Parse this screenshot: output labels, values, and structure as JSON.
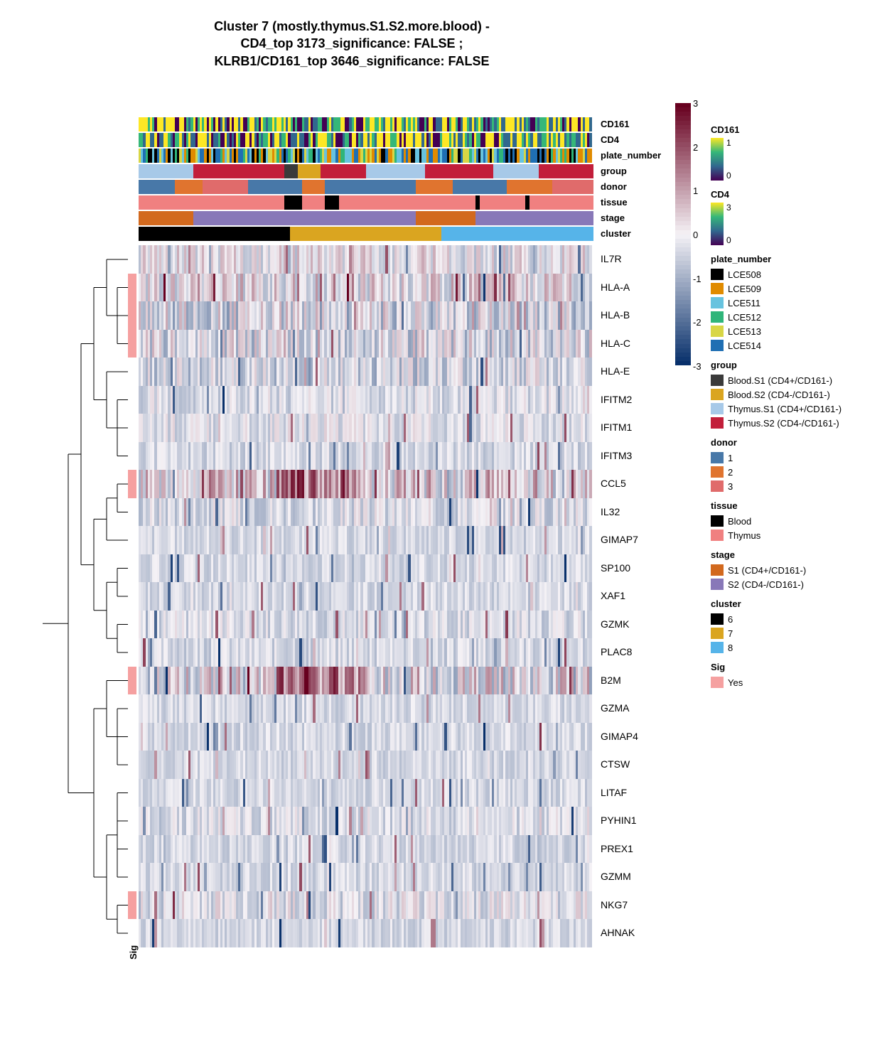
{
  "title_line1": "Cluster 7 (mostly.thymus.S1.S2.more.blood) -",
  "title_line2": "CD4_top 3173_significance: FALSE ;",
  "title_line3": "KLRB1/CD161_top 3646_significance: FALSE",
  "heat_ncols": 200,
  "heat_scale": {
    "min": -3,
    "max": 3,
    "mid": 0,
    "low_color": "#08306b",
    "mid_color": "#f5f2f6",
    "high_color": "#67001f"
  },
  "colorbar_ticks": [
    "3",
    "2",
    "1",
    "0",
    "-1",
    "-2",
    "-3"
  ],
  "anno_tracks": [
    {
      "name": "CD161",
      "label": "CD161",
      "type": "gradient",
      "palette": [
        "#440154",
        "#31688e",
        "#35b779",
        "#fde725"
      ]
    },
    {
      "name": "CD4",
      "label": "CD4",
      "type": "gradient",
      "palette": [
        "#440154",
        "#31688e",
        "#35b779",
        "#fde725"
      ]
    },
    {
      "name": "plate_number",
      "label": "plate_number",
      "type": "categorical",
      "colors": [
        "#000000",
        "#e08b00",
        "#67c3df",
        "#2fb57a",
        "#d8d645",
        "#1f6fb3"
      ]
    },
    {
      "name": "group",
      "label": "group",
      "type": "blocks",
      "segments": [
        {
          "c": "#a7c9e8",
          "w": 0.12
        },
        {
          "c": "#c21e3a",
          "w": 0.2
        },
        {
          "c": "#3a3a3a",
          "w": 0.03
        },
        {
          "c": "#daa520",
          "w": 0.05
        },
        {
          "c": "#c21e3a",
          "w": 0.1
        },
        {
          "c": "#a7c9e8",
          "w": 0.13
        },
        {
          "c": "#c21e3a",
          "w": 0.15
        },
        {
          "c": "#a7c9e8",
          "w": 0.1
        },
        {
          "c": "#c21e3a",
          "w": 0.12
        }
      ]
    },
    {
      "name": "donor",
      "label": "donor",
      "type": "blocks",
      "segments": [
        {
          "c": "#4878a8",
          "w": 0.08
        },
        {
          "c": "#e0742f",
          "w": 0.06
        },
        {
          "c": "#e06b6b",
          "w": 0.1
        },
        {
          "c": "#4878a8",
          "w": 0.12
        },
        {
          "c": "#e0742f",
          "w": 0.05
        },
        {
          "c": "#4878a8",
          "w": 0.2
        },
        {
          "c": "#e0742f",
          "w": 0.08
        },
        {
          "c": "#4878a8",
          "w": 0.12
        },
        {
          "c": "#e0742f",
          "w": 0.1
        },
        {
          "c": "#e06b6b",
          "w": 0.09
        }
      ]
    },
    {
      "name": "tissue",
      "label": "tissue",
      "type": "blocks",
      "segments": [
        {
          "c": "#f08080",
          "w": 0.32
        },
        {
          "c": "#000000",
          "w": 0.04
        },
        {
          "c": "#f08080",
          "w": 0.05
        },
        {
          "c": "#000000",
          "w": 0.03
        },
        {
          "c": "#f08080",
          "w": 0.3
        },
        {
          "c": "#000000",
          "w": 0.01
        },
        {
          "c": "#f08080",
          "w": 0.1
        },
        {
          "c": "#000000",
          "w": 0.01
        },
        {
          "c": "#f08080",
          "w": 0.14
        }
      ]
    },
    {
      "name": "stage",
      "label": "stage",
      "type": "blocks",
      "segments": [
        {
          "c": "#d2691e",
          "w": 0.12
        },
        {
          "c": "#8878b8",
          "w": 0.49
        },
        {
          "c": "#d2691e",
          "w": 0.13
        },
        {
          "c": "#8878b8",
          "w": 0.26
        }
      ]
    },
    {
      "name": "cluster",
      "label": "cluster",
      "type": "blocks",
      "segments": [
        {
          "c": "#000000",
          "w": 0.333
        },
        {
          "c": "#daa520",
          "w": 0.333
        },
        {
          "c": "#56b4e9",
          "w": 0.334
        }
      ]
    }
  ],
  "genes": [
    {
      "name": "IL7R",
      "mean": 0.0,
      "var": 0.9,
      "sig": false
    },
    {
      "name": "HLA-A",
      "mean": 0.1,
      "var": 1.1,
      "sig": true
    },
    {
      "name": "HLA-B",
      "mean": -0.3,
      "var": 1.2,
      "sig": true
    },
    {
      "name": "HLA-C",
      "mean": -0.2,
      "var": 1.1,
      "sig": true
    },
    {
      "name": "HLA-E",
      "mean": -0.4,
      "var": 0.9,
      "sig": false
    },
    {
      "name": "IFITM2",
      "mean": -0.3,
      "var": 0.6,
      "sig": false
    },
    {
      "name": "IFITM1",
      "mean": -0.2,
      "var": 0.6,
      "sig": false
    },
    {
      "name": "IFITM3",
      "mean": -0.4,
      "var": 0.5,
      "sig": false
    },
    {
      "name": "CCL5",
      "mean": 0.2,
      "var": 1.4,
      "sig": true
    },
    {
      "name": "IL32",
      "mean": -0.3,
      "var": 0.7,
      "sig": false
    },
    {
      "name": "GIMAP7",
      "mean": -0.4,
      "var": 0.4,
      "sig": false
    },
    {
      "name": "SP100",
      "mean": -0.4,
      "var": 0.4,
      "sig": false
    },
    {
      "name": "XAF1",
      "mean": -0.4,
      "var": 0.4,
      "sig": false
    },
    {
      "name": "GZMK",
      "mean": -0.3,
      "var": 0.6,
      "sig": false
    },
    {
      "name": "PLAC8",
      "mean": -0.4,
      "var": 0.5,
      "sig": false
    },
    {
      "name": "B2M",
      "mean": 0.0,
      "var": 1.3,
      "sig": true
    },
    {
      "name": "GZMA",
      "mean": -0.4,
      "var": 0.4,
      "sig": false
    },
    {
      "name": "GIMAP4",
      "mean": -0.4,
      "var": 0.4,
      "sig": false
    },
    {
      "name": "CTSW",
      "mean": -0.4,
      "var": 0.4,
      "sig": false
    },
    {
      "name": "LITAF",
      "mean": -0.4,
      "var": 0.4,
      "sig": false
    },
    {
      "name": "PYHIN1",
      "mean": -0.3,
      "var": 0.6,
      "sig": false
    },
    {
      "name": "PREX1",
      "mean": -0.4,
      "var": 0.4,
      "sig": false
    },
    {
      "name": "GZMM",
      "mean": -0.4,
      "var": 0.4,
      "sig": false
    },
    {
      "name": "NKG7",
      "mean": -0.2,
      "var": 0.8,
      "sig": true
    },
    {
      "name": "AHNAK",
      "mean": -0.4,
      "var": 0.4,
      "sig": false
    }
  ],
  "sig_blocks": [
    {
      "start": 1,
      "end": 4
    },
    {
      "start": 8,
      "end": 9
    },
    {
      "start": 15,
      "end": 16
    },
    {
      "start": 23,
      "end": 24
    }
  ],
  "sig_axis_label": "Sig",
  "legends": {
    "CD161": {
      "type": "gradient",
      "colors": [
        "#fde725",
        "#35b779",
        "#31688e",
        "#440154"
      ],
      "labels": [
        "1",
        "",
        "",
        "0"
      ]
    },
    "CD4": {
      "type": "gradient",
      "colors": [
        "#fde725",
        "#35b779",
        "#31688e",
        "#440154"
      ],
      "labels": [
        "3",
        "",
        "",
        "0"
      ]
    },
    "plate_number": [
      {
        "c": "#000000",
        "l": "LCE508"
      },
      {
        "c": "#e08b00",
        "l": "LCE509"
      },
      {
        "c": "#67c3df",
        "l": "LCE511"
      },
      {
        "c": "#2fb57a",
        "l": "LCE512"
      },
      {
        "c": "#d8d645",
        "l": "LCE513"
      },
      {
        "c": "#1f6fb3",
        "l": "LCE514"
      }
    ],
    "group": [
      {
        "c": "#3a3a3a",
        "l": "Blood.S1 (CD4+/CD161-)"
      },
      {
        "c": "#daa520",
        "l": "Blood.S2 (CD4-/CD161-)"
      },
      {
        "c": "#a7c9e8",
        "l": "Thymus.S1 (CD4+/CD161-)"
      },
      {
        "c": "#c21e3a",
        "l": "Thymus.S2 (CD4-/CD161-)"
      }
    ],
    "donor": [
      {
        "c": "#4878a8",
        "l": "1"
      },
      {
        "c": "#e0742f",
        "l": "2"
      },
      {
        "c": "#e06b6b",
        "l": "3"
      }
    ],
    "tissue": [
      {
        "c": "#000000",
        "l": "Blood"
      },
      {
        "c": "#f08080",
        "l": "Thymus"
      }
    ],
    "stage": [
      {
        "c": "#d2691e",
        "l": "S1 (CD4+/CD161-)"
      },
      {
        "c": "#8878b8",
        "l": "S2 (CD4-/CD161-)"
      }
    ],
    "cluster": [
      {
        "c": "#000000",
        "l": "6"
      },
      {
        "c": "#daa520",
        "l": "7"
      },
      {
        "c": "#56b4e9",
        "l": "8"
      }
    ],
    "Sig": [
      {
        "c": "#f5a0a0",
        "l": "Yes"
      }
    ]
  },
  "dendro_clusters": [
    [
      0
    ],
    [
      1,
      2,
      3
    ],
    [
      4
    ],
    [
      5,
      6,
      7
    ],
    [
      8,
      9
    ],
    [
      10
    ],
    [
      11,
      12
    ],
    [
      13,
      14
    ],
    [
      15
    ],
    [
      16,
      17,
      18
    ],
    [
      19,
      20,
      21,
      22
    ],
    [
      23,
      24
    ]
  ]
}
